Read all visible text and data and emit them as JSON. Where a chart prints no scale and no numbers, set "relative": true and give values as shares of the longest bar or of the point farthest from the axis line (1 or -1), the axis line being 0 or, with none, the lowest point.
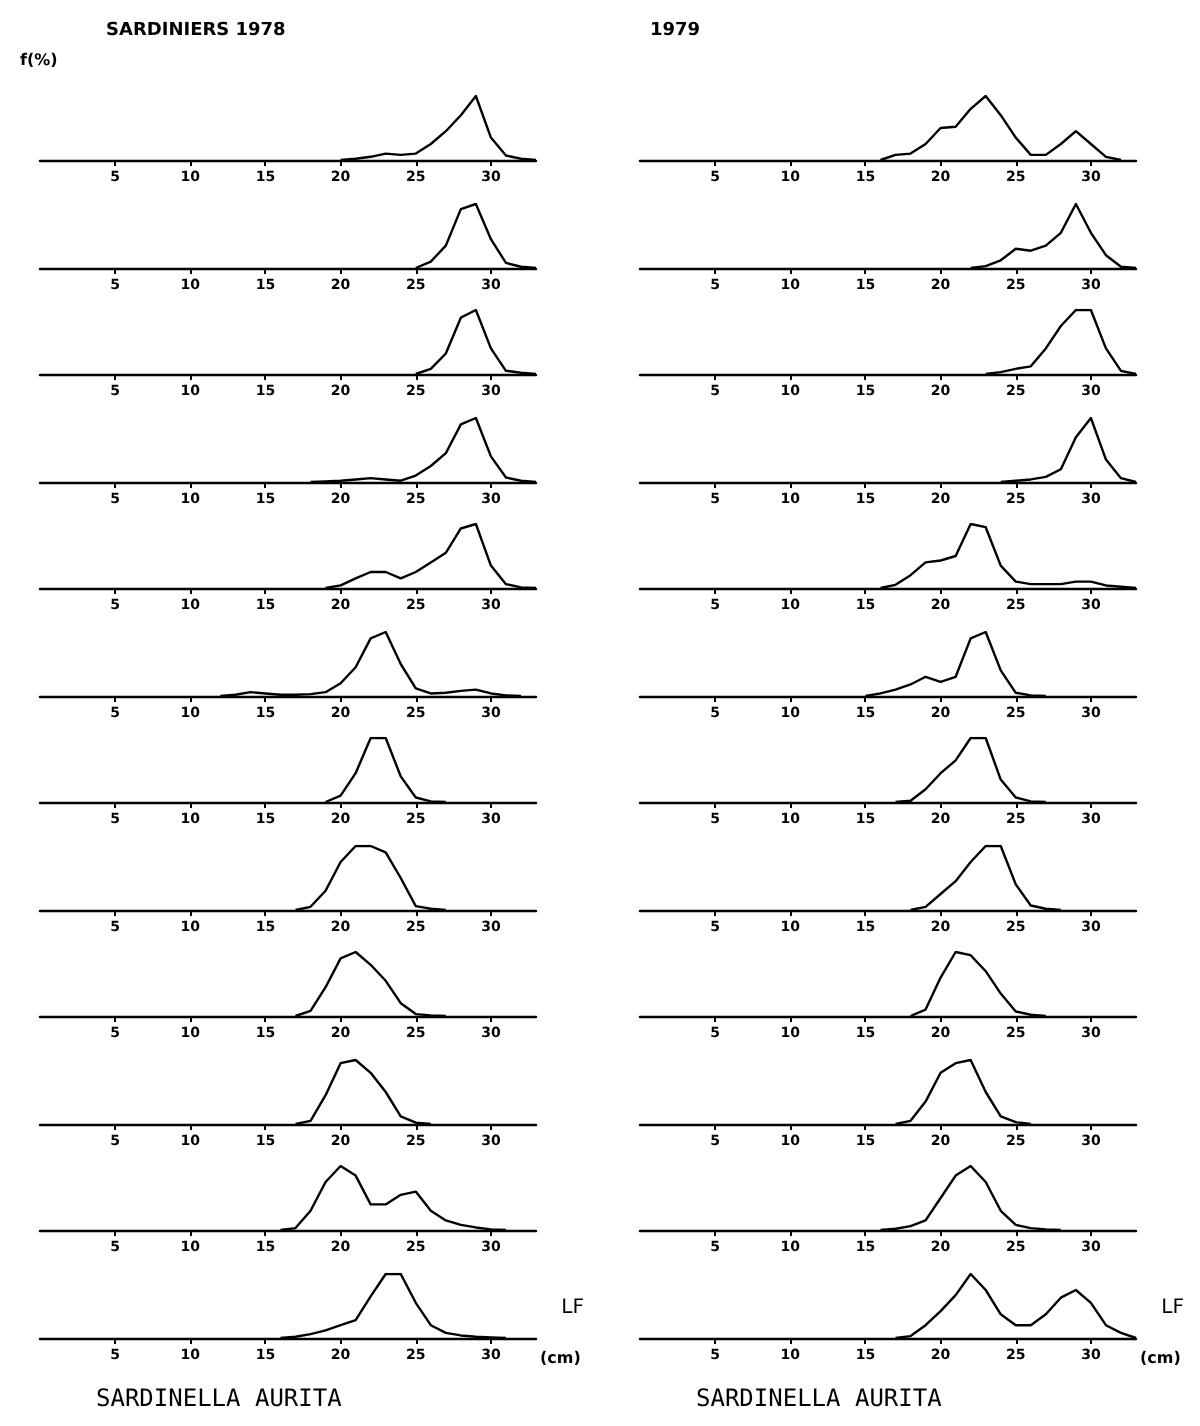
{
  "chart_data": [
    {
      "type": "line",
      "title": "SARDINIERS 1978",
      "ylabel": "f(%)",
      "relative": true,
      "color": "#000000",
      "xlim": [
        0,
        33
      ],
      "xticks": [
        5,
        10,
        15,
        20,
        25,
        30
      ],
      "x": [
        20,
        21,
        22,
        23,
        24,
        25,
        26,
        27,
        28,
        29,
        30,
        31,
        32,
        33
      ],
      "values": [
        0,
        0.02,
        0.05,
        0.1,
        0.08,
        0.1,
        0.25,
        0.45,
        0.7,
        1,
        0.35,
        0.07,
        0.02,
        0
      ]
    },
    {
      "type": "line",
      "title": "1979",
      "relative": true,
      "color": "#000000",
      "xlim": [
        0,
        33
      ],
      "xticks": [
        5,
        10,
        15,
        20,
        25,
        30
      ],
      "x": [
        16,
        17,
        18,
        19,
        20,
        21,
        22,
        23,
        24,
        25,
        26,
        27,
        28,
        29,
        30,
        31,
        32
      ],
      "values": [
        0,
        0.08,
        0.1,
        0.25,
        0.5,
        0.52,
        0.8,
        1,
        0.7,
        0.35,
        0.08,
        0.08,
        0.25,
        0.45,
        0.25,
        0.05,
        0
      ]
    },
    {
      "type": "line",
      "relative": true,
      "color": "#000000",
      "xlim": [
        0,
        33
      ],
      "xticks": [
        5,
        10,
        15,
        20,
        25,
        30
      ],
      "x": [
        25,
        26,
        27,
        28,
        29,
        30,
        31,
        32,
        33
      ],
      "values": [
        0,
        0.1,
        0.35,
        0.92,
        1,
        0.45,
        0.08,
        0.02,
        0
      ]
    },
    {
      "type": "line",
      "relative": true,
      "color": "#000000",
      "xlim": [
        0,
        33
      ],
      "xticks": [
        5,
        10,
        15,
        20,
        25,
        30
      ],
      "x": [
        22,
        23,
        24,
        25,
        26,
        27,
        28,
        29,
        30,
        31,
        32,
        33
      ],
      "values": [
        0,
        0.03,
        0.12,
        0.3,
        0.27,
        0.35,
        0.55,
        1,
        0.55,
        0.2,
        0.02,
        0
      ]
    },
    {
      "type": "line",
      "relative": true,
      "color": "#000000",
      "xlim": [
        0,
        33
      ],
      "xticks": [
        5,
        10,
        15,
        20,
        25,
        30
      ],
      "x": [
        25,
        26,
        27,
        28,
        29,
        30,
        31,
        32,
        33
      ],
      "values": [
        0,
        0.08,
        0.32,
        0.88,
        1,
        0.4,
        0.05,
        0.02,
        0
      ]
    },
    {
      "type": "line",
      "relative": true,
      "color": "#000000",
      "xlim": [
        0,
        33
      ],
      "xticks": [
        5,
        10,
        15,
        20,
        25,
        30
      ],
      "x": [
        23,
        24,
        25,
        26,
        27,
        28,
        29,
        30,
        31,
        32,
        33
      ],
      "values": [
        0,
        0.03,
        0.08,
        0.12,
        0.4,
        0.75,
        1,
        1,
        0.4,
        0.05,
        0
      ]
    },
    {
      "type": "line",
      "relative": true,
      "color": "#000000",
      "xlim": [
        0,
        33
      ],
      "xticks": [
        5,
        10,
        15,
        20,
        25,
        30
      ],
      "x": [
        18,
        19,
        20,
        21,
        22,
        23,
        24,
        25,
        26,
        27,
        28,
        29,
        30,
        31,
        32,
        33
      ],
      "values": [
        0,
        0.01,
        0.02,
        0.04,
        0.06,
        0.04,
        0.02,
        0.1,
        0.25,
        0.45,
        0.9,
        1,
        0.4,
        0.07,
        0.02,
        0
      ]
    },
    {
      "type": "line",
      "relative": true,
      "color": "#000000",
      "xlim": [
        0,
        33
      ],
      "xticks": [
        5,
        10,
        15,
        20,
        25,
        30
      ],
      "x": [
        24,
        25,
        26,
        27,
        28,
        29,
        30,
        31,
        32,
        33
      ],
      "values": [
        0,
        0.02,
        0.04,
        0.08,
        0.2,
        0.7,
        1,
        0.35,
        0.06,
        0
      ]
    },
    {
      "type": "line",
      "relative": true,
      "color": "#000000",
      "xlim": [
        0,
        33
      ],
      "xticks": [
        5,
        10,
        15,
        20,
        25,
        30
      ],
      "x": [
        19,
        20,
        21,
        22,
        23,
        24,
        25,
        26,
        27,
        28,
        29,
        30,
        31,
        32,
        33
      ],
      "values": [
        0,
        0.04,
        0.15,
        0.25,
        0.25,
        0.15,
        0.25,
        0.4,
        0.55,
        0.93,
        1,
        0.35,
        0.06,
        0.01,
        0
      ]
    },
    {
      "type": "line",
      "relative": true,
      "color": "#000000",
      "xlim": [
        0,
        33
      ],
      "xticks": [
        5,
        10,
        15,
        20,
        25,
        30
      ],
      "x": [
        16,
        17,
        18,
        19,
        20,
        21,
        22,
        23,
        24,
        25,
        26,
        27,
        28,
        29,
        30,
        31,
        32,
        33
      ],
      "values": [
        0,
        0.05,
        0.2,
        0.4,
        0.43,
        0.5,
        1,
        0.95,
        0.35,
        0.1,
        0.06,
        0.06,
        0.06,
        0.1,
        0.1,
        0.04,
        0.02,
        0
      ]
    },
    {
      "type": "line",
      "relative": true,
      "color": "#000000",
      "xlim": [
        0,
        33
      ],
      "xticks": [
        5,
        10,
        15,
        20,
        25,
        30
      ],
      "x": [
        12,
        13,
        14,
        15,
        16,
        17,
        18,
        19,
        20,
        21,
        22,
        23,
        24,
        25,
        26,
        27,
        28,
        29,
        30,
        31,
        32
      ],
      "values": [
        0,
        0.02,
        0.06,
        0.04,
        0.02,
        0.02,
        0.03,
        0.06,
        0.2,
        0.45,
        0.9,
        1,
        0.5,
        0.12,
        0.04,
        0.05,
        0.08,
        0.1,
        0.04,
        0.01,
        0
      ]
    },
    {
      "type": "line",
      "relative": true,
      "color": "#000000",
      "xlim": [
        0,
        33
      ],
      "xticks": [
        5,
        10,
        15,
        20,
        25,
        30
      ],
      "x": [
        15,
        16,
        17,
        18,
        19,
        20,
        21,
        22,
        23,
        24,
        25,
        26,
        27
      ],
      "values": [
        0,
        0.04,
        0.1,
        0.18,
        0.3,
        0.22,
        0.3,
        0.9,
        1,
        0.4,
        0.05,
        0.01,
        0
      ]
    },
    {
      "type": "line",
      "relative": true,
      "color": "#000000",
      "xlim": [
        0,
        33
      ],
      "xticks": [
        5,
        10,
        15,
        20,
        25,
        30
      ],
      "x": [
        19,
        20,
        21,
        22,
        23,
        24,
        25,
        26,
        27
      ],
      "values": [
        0,
        0.1,
        0.45,
        1,
        1,
        0.4,
        0.07,
        0.01,
        0
      ]
    },
    {
      "type": "line",
      "relative": true,
      "color": "#000000",
      "xlim": [
        0,
        33
      ],
      "xticks": [
        5,
        10,
        15,
        20,
        25,
        30
      ],
      "x": [
        17,
        18,
        19,
        20,
        21,
        22,
        23,
        24,
        25,
        26,
        27
      ],
      "values": [
        0,
        0.02,
        0.2,
        0.45,
        0.65,
        1,
        1,
        0.35,
        0.07,
        0.01,
        0
      ]
    },
    {
      "type": "line",
      "relative": true,
      "color": "#000000",
      "xlim": [
        0,
        33
      ],
      "xticks": [
        5,
        10,
        15,
        20,
        25,
        30
      ],
      "x": [
        17,
        18,
        19,
        20,
        21,
        22,
        23,
        24,
        25,
        26,
        27
      ],
      "values": [
        0,
        0.05,
        0.3,
        0.75,
        1,
        1,
        0.9,
        0.5,
        0.06,
        0.02,
        0
      ]
    },
    {
      "type": "line",
      "relative": true,
      "color": "#000000",
      "xlim": [
        0,
        33
      ],
      "xticks": [
        5,
        10,
        15,
        20,
        25,
        30
      ],
      "x": [
        18,
        19,
        20,
        21,
        22,
        23,
        24,
        25,
        26,
        27,
        28
      ],
      "values": [
        0,
        0.05,
        0.25,
        0.45,
        0.75,
        1,
        1,
        0.4,
        0.07,
        0.02,
        0
      ]
    },
    {
      "type": "line",
      "relative": true,
      "color": "#000000",
      "xlim": [
        0,
        33
      ],
      "xticks": [
        5,
        10,
        15,
        20,
        25,
        30
      ],
      "x": [
        17,
        18,
        19,
        20,
        21,
        22,
        23,
        24,
        25,
        26,
        27
      ],
      "values": [
        0,
        0.08,
        0.45,
        0.9,
        1,
        0.8,
        0.55,
        0.2,
        0.03,
        0.01,
        0
      ]
    },
    {
      "type": "line",
      "relative": true,
      "color": "#000000",
      "xlim": [
        0,
        33
      ],
      "xticks": [
        5,
        10,
        15,
        20,
        25,
        30
      ],
      "x": [
        18,
        19,
        20,
        21,
        22,
        23,
        24,
        25,
        26,
        27
      ],
      "values": [
        0,
        0.1,
        0.6,
        1,
        0.95,
        0.7,
        0.35,
        0.07,
        0.02,
        0
      ]
    },
    {
      "type": "line",
      "relative": true,
      "color": "#000000",
      "xlim": [
        0,
        33
      ],
      "xticks": [
        5,
        10,
        15,
        20,
        25,
        30
      ],
      "x": [
        17,
        18,
        19,
        20,
        21,
        22,
        23,
        24,
        25,
        26
      ],
      "values": [
        0,
        0.05,
        0.45,
        0.95,
        1,
        0.8,
        0.5,
        0.12,
        0.02,
        0
      ]
    },
    {
      "type": "line",
      "relative": true,
      "color": "#000000",
      "xlim": [
        0,
        33
      ],
      "xticks": [
        5,
        10,
        15,
        20,
        25,
        30
      ],
      "x": [
        17,
        18,
        19,
        20,
        21,
        22,
        23,
        24,
        25,
        26
      ],
      "values": [
        0,
        0.05,
        0.35,
        0.8,
        0.95,
        1,
        0.5,
        0.12,
        0.03,
        0
      ]
    },
    {
      "type": "line",
      "relative": true,
      "color": "#000000",
      "xlim": [
        0,
        33
      ],
      "xticks": [
        5,
        10,
        15,
        20,
        25,
        30
      ],
      "x": [
        16,
        17,
        18,
        19,
        20,
        21,
        22,
        23,
        24,
        25,
        26,
        27,
        28,
        29,
        30,
        31
      ],
      "values": [
        0,
        0.03,
        0.3,
        0.75,
        1,
        0.85,
        0.4,
        0.4,
        0.55,
        0.6,
        0.3,
        0.15,
        0.08,
        0.04,
        0.01,
        0
      ]
    },
    {
      "type": "line",
      "relative": true,
      "color": "#000000",
      "xlim": [
        0,
        33
      ],
      "xticks": [
        5,
        10,
        15,
        20,
        25,
        30
      ],
      "x": [
        16,
        17,
        18,
        19,
        20,
        21,
        22,
        23,
        24,
        25,
        26,
        27,
        28
      ],
      "values": [
        0,
        0.02,
        0.06,
        0.15,
        0.5,
        0.85,
        1,
        0.75,
        0.3,
        0.08,
        0.03,
        0.01,
        0
      ]
    },
    {
      "type": "line",
      "xlabel": "(cm)",
      "annotations": [
        "LF",
        "SARDINELLA AURITA"
      ],
      "relative": true,
      "color": "#000000",
      "xlim": [
        0,
        33
      ],
      "xticks": [
        5,
        10,
        15,
        20,
        25,
        30
      ],
      "x": [
        16,
        17,
        18,
        19,
        20,
        21,
        22,
        23,
        24,
        25,
        26,
        27,
        28,
        29,
        30,
        31
      ],
      "values": [
        0,
        0.02,
        0.06,
        0.12,
        0.2,
        0.28,
        0.65,
        1,
        1,
        0.55,
        0.2,
        0.08,
        0.04,
        0.02,
        0.01,
        0
      ]
    },
    {
      "type": "line",
      "xlabel": "(cm)",
      "annotations": [
        "LF",
        "SARDINELLA AURITA"
      ],
      "relative": true,
      "color": "#000000",
      "xlim": [
        0,
        33
      ],
      "xticks": [
        5,
        10,
        15,
        20,
        25,
        30
      ],
      "x": [
        17,
        18,
        19,
        20,
        21,
        22,
        23,
        24,
        25,
        26,
        27,
        28,
        29,
        30,
        31,
        32,
        33
      ],
      "values": [
        0,
        0.03,
        0.2,
        0.42,
        0.67,
        1,
        0.75,
        0.37,
        0.2,
        0.2,
        0.37,
        0.63,
        0.75,
        0.55,
        0.2,
        0.08,
        0
      ]
    }
  ]
}
